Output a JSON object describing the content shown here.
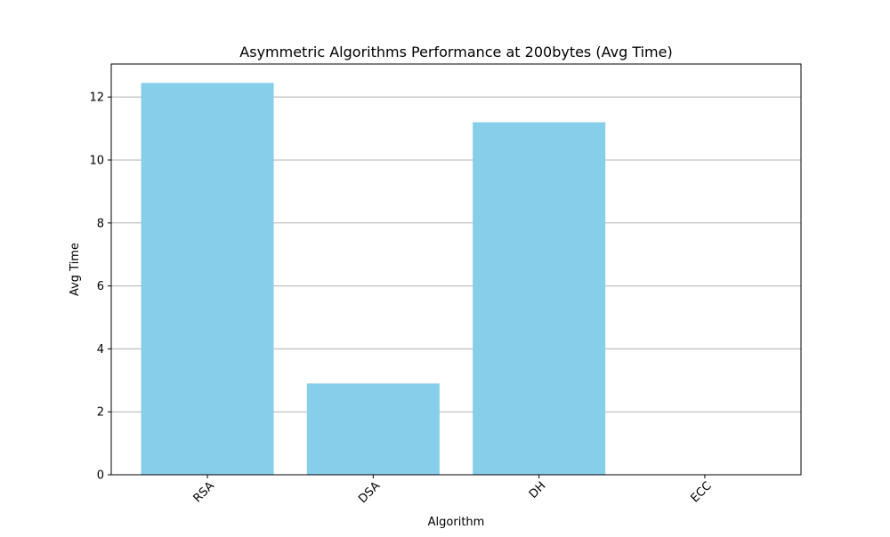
{
  "chart_data": {
    "type": "bar",
    "title": "Asymmetric Algorithms Performance at 200bytes (Avg Time)",
    "xlabel": "Algorithm",
    "ylabel": "Avg Time",
    "categories": [
      "RSA",
      "DSA",
      "DH",
      "ECC"
    ],
    "values": [
      12.45,
      2.9,
      11.2,
      0.0
    ],
    "ylim": [
      0,
      13.05
    ],
    "yticks": [
      0,
      2,
      4,
      6,
      8,
      10,
      12
    ],
    "grid": "y-major",
    "x_tick_rotation": "45 degrees",
    "bar_color": "#87ceeb",
    "grid_color": "#b0b0b0",
    "axis_color": "#000000"
  }
}
